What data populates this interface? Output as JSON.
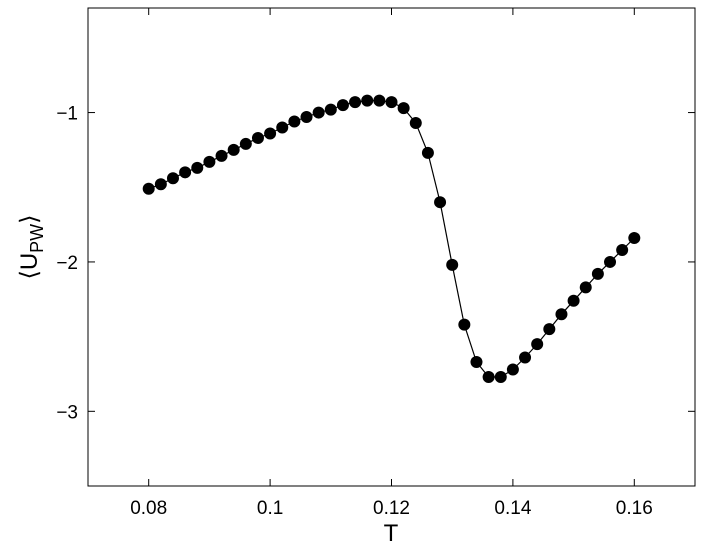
{
  "chart_data": {
    "type": "line",
    "title": "",
    "xlabel": "T",
    "ylabel": {
      "open": "⟨U",
      "subscript": "PW",
      "close": "⟩"
    },
    "xlim": [
      0.07,
      0.17
    ],
    "ylim": [
      -3.5,
      -0.3
    ],
    "xticks": [
      0.08,
      0.1,
      0.12,
      0.14,
      0.16
    ],
    "xtick_labels": [
      "0.08",
      "0.1",
      "0.12",
      "0.14",
      "0.16"
    ],
    "yticks": [
      -1,
      -2,
      -3
    ],
    "ytick_labels": [
      "−1",
      "−2",
      "−3"
    ],
    "grid": false,
    "legend": "none",
    "marker": "filled-circle",
    "line_color": "#000000",
    "marker_color": "#000000",
    "series": [
      {
        "x": [
          0.08,
          0.082,
          0.084,
          0.086,
          0.088,
          0.09,
          0.092,
          0.094,
          0.096,
          0.098,
          0.1,
          0.102,
          0.104,
          0.106,
          0.108,
          0.11,
          0.112,
          0.114,
          0.116,
          0.118,
          0.12,
          0.122,
          0.124,
          0.126,
          0.128,
          0.13,
          0.132,
          0.134,
          0.136,
          0.138,
          0.14,
          0.142,
          0.144,
          0.146,
          0.148,
          0.15,
          0.152,
          0.154,
          0.156,
          0.158,
          0.16
        ],
        "y": [
          -1.51,
          -1.48,
          -1.44,
          -1.4,
          -1.37,
          -1.33,
          -1.29,
          -1.25,
          -1.21,
          -1.17,
          -1.14,
          -1.1,
          -1.06,
          -1.03,
          -1.0,
          -0.98,
          -0.95,
          -0.93,
          -0.92,
          -0.92,
          -0.93,
          -0.97,
          -1.07,
          -1.27,
          -1.6,
          -2.02,
          -2.42,
          -2.67,
          -2.77,
          -2.77,
          -2.72,
          -2.64,
          -2.55,
          -2.45,
          -2.35,
          -2.26,
          -2.17,
          -2.08,
          -2.0,
          -1.92,
          -1.84
        ]
      }
    ]
  }
}
